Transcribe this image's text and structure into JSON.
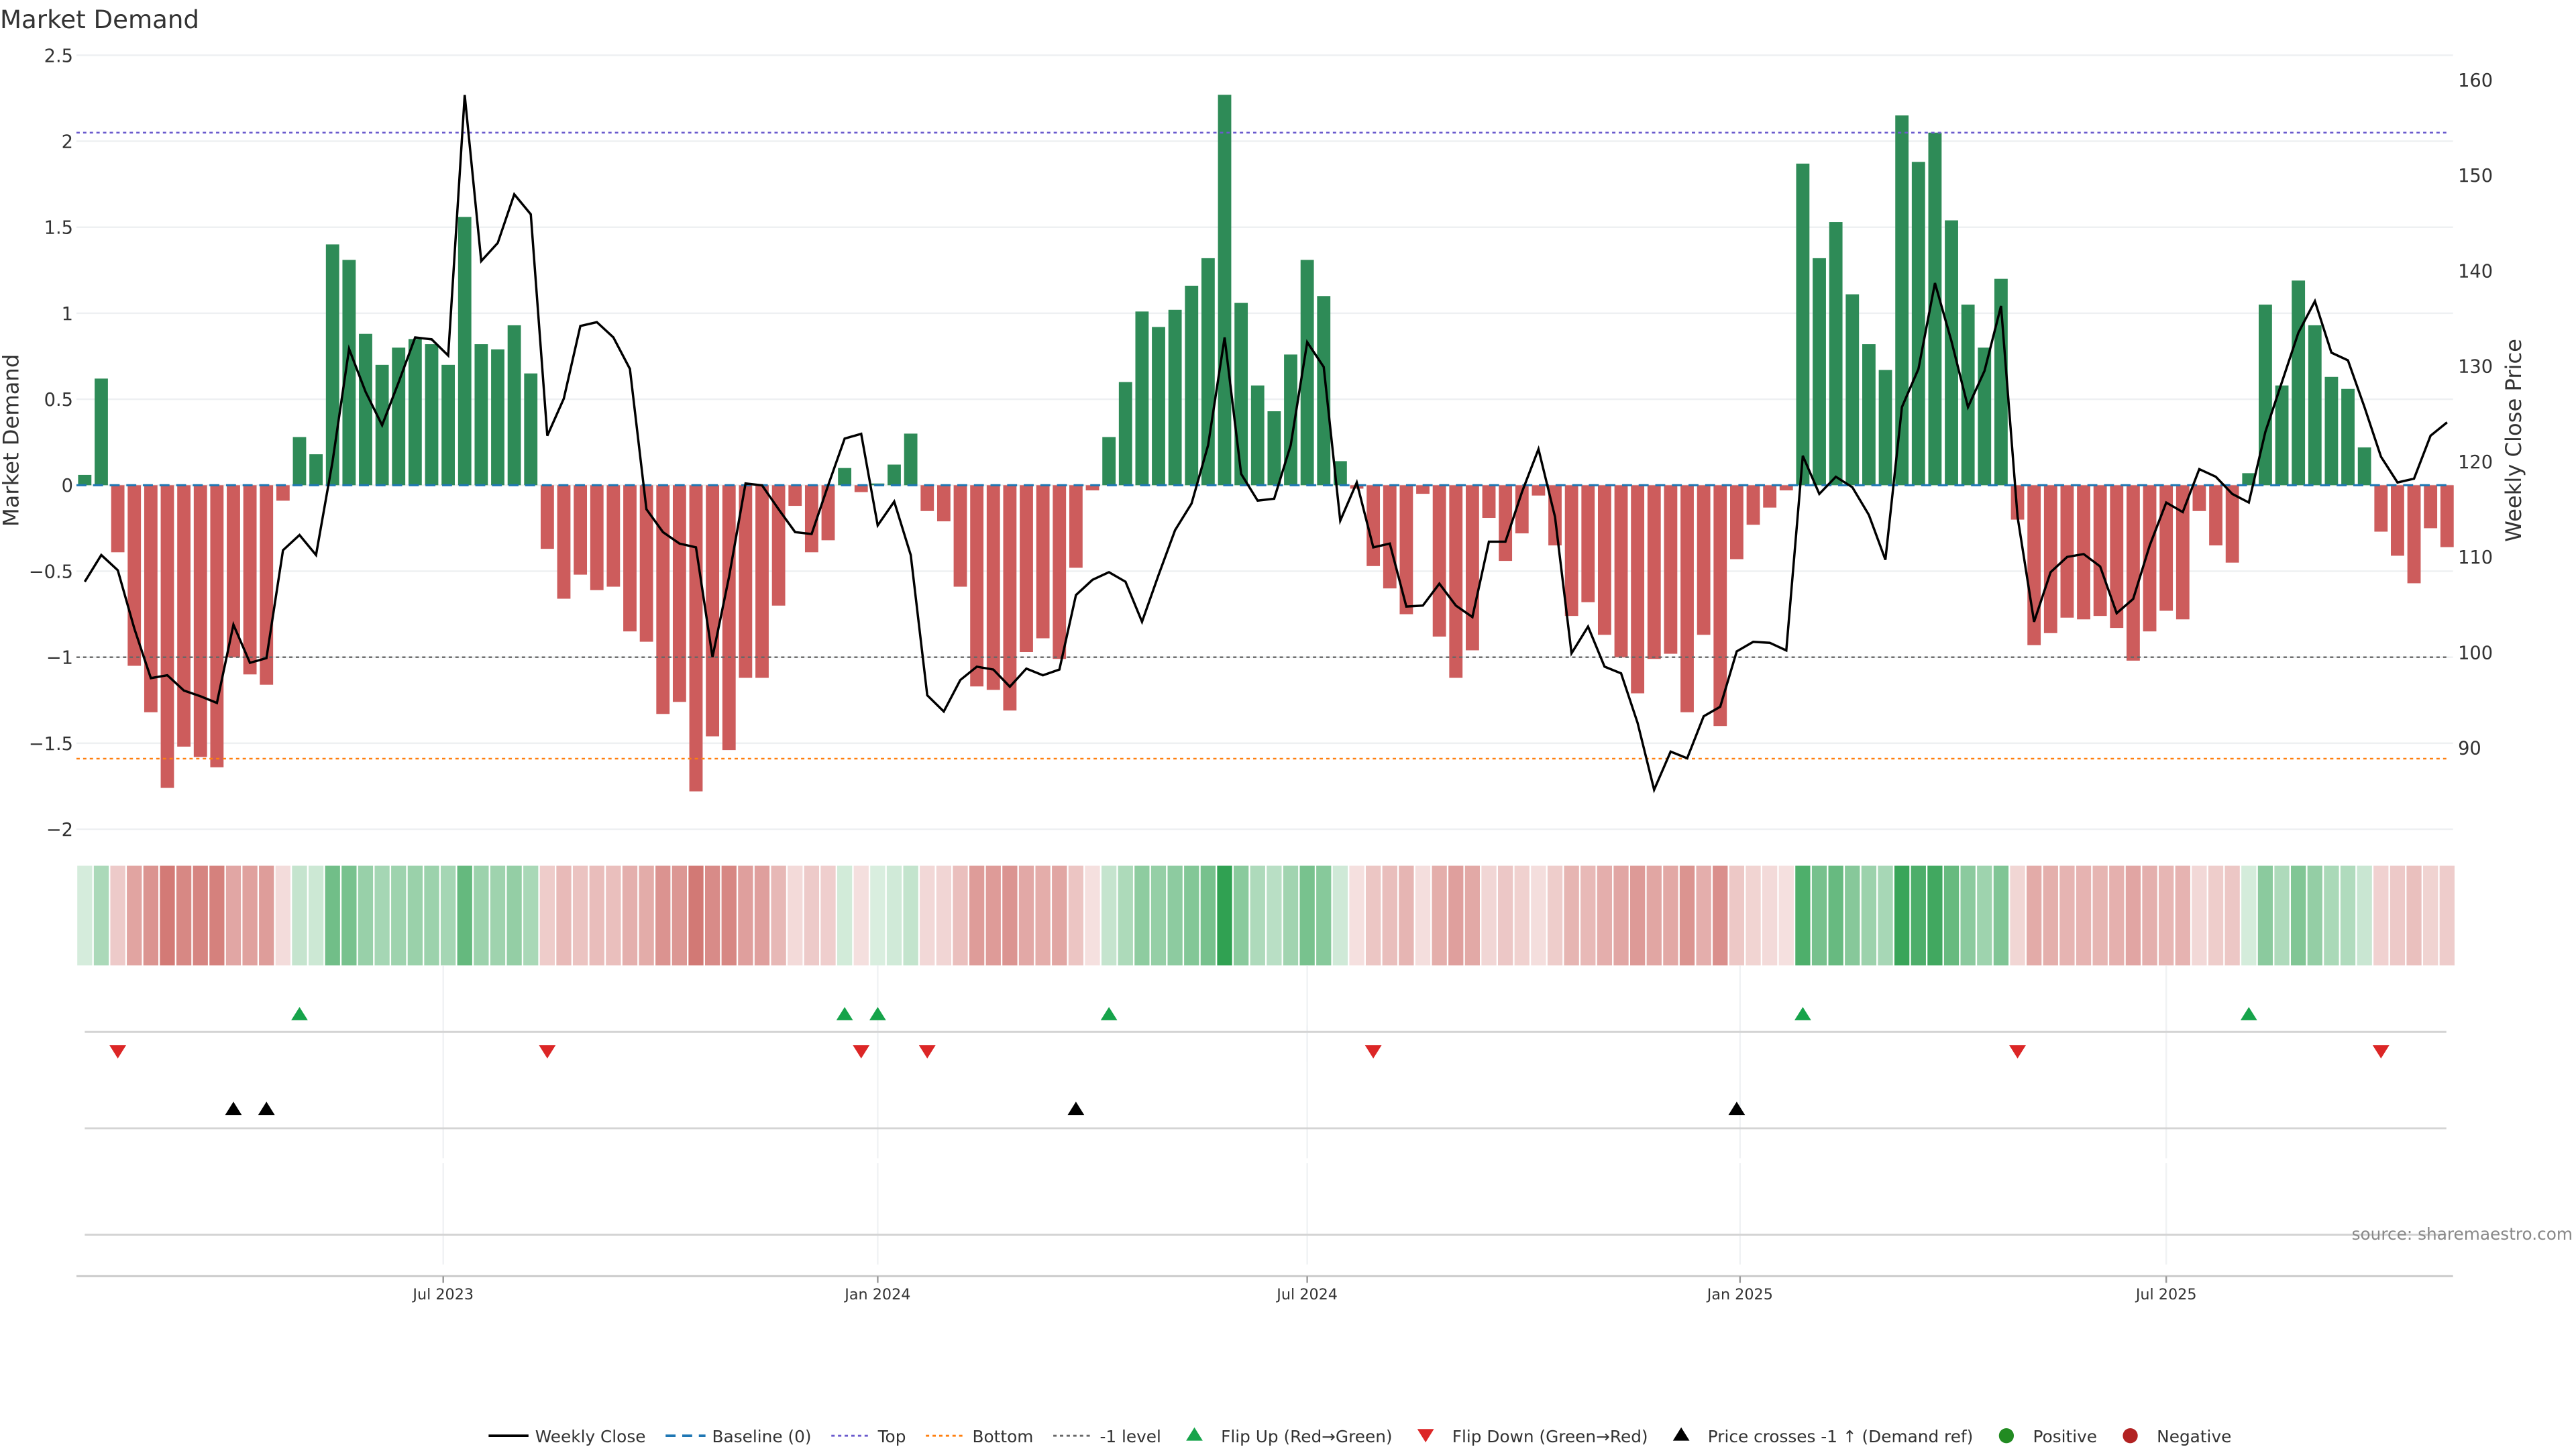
{
  "chart_data": {
    "type": "bar",
    "title": "Market Demand",
    "ylabel": "Market Demand",
    "y2label": "Weekly Close Price",
    "ylim": [
      -2.1,
      2.5
    ],
    "y2lim": [
      82,
      162.5
    ],
    "yticks": [
      "2.5",
      "2",
      "1.5",
      "1",
      "0.5",
      "0",
      "−0.5",
      "−1",
      "−1.5",
      "−2"
    ],
    "ytick_values": [
      2.5,
      2,
      1.5,
      1,
      0.5,
      0,
      -0.5,
      -1,
      -1.5,
      -2
    ],
    "y2ticks": [
      "160",
      "150",
      "140",
      "130",
      "120",
      "110",
      "100",
      "90"
    ],
    "y2tick_values": [
      160,
      150,
      140,
      130,
      120,
      110,
      100,
      90
    ],
    "xticks": [
      {
        "label": "Jul 2023",
        "week": 21.7
      },
      {
        "label": "Jan 2024",
        "week": 48.0
      },
      {
        "label": "Jul 2024",
        "week": 74.0
      },
      {
        "label": "Jan 2025",
        "week": 100.2
      },
      {
        "label": "Jul 2025",
        "week": 126.0
      }
    ],
    "levels": {
      "top": 2.05,
      "bottom": -1.59,
      "minus_one": -1,
      "baseline": 0
    },
    "demand": [
      0.06,
      0.62,
      -0.39,
      -1.05,
      -1.32,
      -1.76,
      -1.52,
      -1.58,
      -1.64,
      -1.0,
      -1.1,
      -1.16,
      -0.09,
      0.28,
      0.18,
      1.4,
      1.31,
      0.88,
      0.7,
      0.8,
      0.85,
      0.82,
      0.7,
      1.56,
      0.82,
      0.79,
      0.93,
      0.65,
      -0.37,
      -0.66,
      -0.52,
      -0.61,
      -0.59,
      -0.85,
      -0.91,
      -1.33,
      -1.26,
      -1.78,
      -1.46,
      -1.54,
      -1.12,
      -1.12,
      -0.7,
      -0.12,
      -0.39,
      -0.32,
      0.1,
      -0.04,
      0.01,
      0.12,
      0.3,
      -0.15,
      -0.21,
      -0.59,
      -1.17,
      -1.19,
      -1.31,
      -0.97,
      -0.89,
      -1.01,
      -0.48,
      -0.03,
      0.28,
      0.6,
      1.01,
      0.92,
      1.02,
      1.16,
      1.32,
      2.27,
      1.06,
      0.58,
      0.43,
      0.76,
      1.31,
      1.1,
      0.14,
      -0.02,
      -0.47,
      -0.6,
      -0.75,
      -0.05,
      -0.88,
      -1.12,
      -0.96,
      -0.19,
      -0.44,
      -0.28,
      -0.06,
      -0.35,
      -0.76,
      -0.68,
      -0.87,
      -1.0,
      -1.21,
      -1.01,
      -0.98,
      -1.32,
      -0.87,
      -1.4,
      -0.43,
      -0.23,
      -0.13,
      -0.03,
      1.87,
      1.32,
      1.53,
      1.11,
      0.82,
      0.67,
      2.15,
      1.88,
      2.05,
      1.54,
      1.05,
      0.8,
      1.2,
      -0.2,
      -0.93,
      -0.86,
      -0.77,
      -0.78,
      -0.76,
      -0.83,
      -1.02,
      -0.85,
      -0.73,
      -0.78,
      -0.15,
      -0.35,
      -0.45,
      0.07,
      1.05,
      0.58,
      1.19,
      0.93,
      0.63,
      0.56,
      0.22,
      -0.27,
      -0.41,
      -0.57,
      -0.25,
      -0.36
    ],
    "weekly_close": [
      107.4,
      110.2,
      108.6,
      102.5,
      97.3,
      97.6,
      96.0,
      95.4,
      94.7,
      102.9,
      98.9,
      99.4,
      110.7,
      112.3,
      110.2,
      120.0,
      131.8,
      127.3,
      123.8,
      128.3,
      133.0,
      132.8,
      131.1,
      158.4,
      141.0,
      142.9,
      148.0,
      145.9,
      122.7,
      126.6,
      134.2,
      134.6,
      133.0,
      129.7,
      115.0,
      112.6,
      111.4,
      111.0,
      99.5,
      107.9,
      117.7,
      117.5,
      115.0,
      112.6,
      112.4,
      117.5,
      122.4,
      122.9,
      113.3,
      115.8,
      110.2,
      95.5,
      93.8,
      97.1,
      98.5,
      98.2,
      96.4,
      98.3,
      97.6,
      98.2,
      106.0,
      107.6,
      108.4,
      107.4,
      103.2,
      108.1,
      112.8,
      115.6,
      121.7,
      133.0,
      118.7,
      115.9,
      116.1,
      121.7,
      132.5,
      129.9,
      113.8,
      117.8,
      111.0,
      111.4,
      104.8,
      104.9,
      107.2,
      104.9,
      103.7,
      111.6,
      111.6,
      116.8,
      121.3,
      114.2,
      99.9,
      102.7,
      98.5,
      97.8,
      92.6,
      85.6,
      89.6,
      88.9,
      93.3,
      94.3,
      100.1,
      101.1,
      101.0,
      100.2,
      120.6,
      116.6,
      118.4,
      117.3,
      114.4,
      109.7,
      125.7,
      129.7,
      138.7,
      132.6,
      125.7,
      129.5,
      136.3,
      114.2,
      103.2,
      108.4,
      110.0,
      110.3,
      109.0,
      104.1,
      105.6,
      111.2,
      115.7,
      114.7,
      119.2,
      118.4,
      116.6,
      115.7,
      123.1,
      128.3,
      133.5,
      136.8,
      131.4,
      130.6,
      125.7,
      120.5,
      117.8,
      118.2,
      122.7,
      124.1
    ],
    "flip_up_weeks": [
      13,
      46,
      48,
      62,
      104,
      131
    ],
    "flip_down_weeks": [
      2,
      28,
      47,
      51,
      78,
      117,
      139
    ],
    "price_cross_weeks": [
      9,
      11,
      60,
      100
    ],
    "legend": [
      {
        "label": "Weekly Close",
        "kind": "line",
        "color": "#000000"
      },
      {
        "label": "Baseline (0)",
        "kind": "dash",
        "color": "#1f77b4"
      },
      {
        "label": "Top",
        "kind": "dot",
        "color": "#6a5acd"
      },
      {
        "label": "Bottom",
        "kind": "dot",
        "color": "#ff7f0e"
      },
      {
        "label": "-1 level",
        "kind": "dot",
        "color": "#666666"
      },
      {
        "label": "Flip Up (Red→Green)",
        "kind": "up",
        "color": "#16a34a"
      },
      {
        "label": "Flip Down (Green→Red)",
        "kind": "down",
        "color": "#dc2626"
      },
      {
        "label": "Price crosses -1 ↑ (Demand ref)",
        "kind": "up",
        "color": "#000000"
      },
      {
        "label": "Positive",
        "kind": "circle",
        "color": "#228b22"
      },
      {
        "label": "Negative",
        "kind": "circle",
        "color": "#b22222"
      }
    ],
    "source": "source: sharemaestro.com"
  },
  "colors": {
    "positive": "#2e8b57",
    "negative": "#cd5c5c",
    "heat_pos": [
      46,
      160,
      80
    ],
    "heat_neg": [
      200,
      90,
      85
    ]
  }
}
